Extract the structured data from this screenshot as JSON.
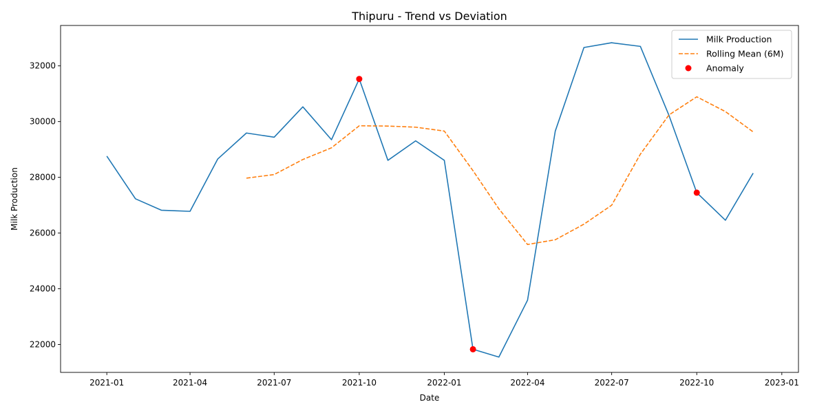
{
  "chart_data": {
    "type": "line",
    "title": "Thipuru - Trend vs Deviation",
    "xlabel": "Date",
    "ylabel": "Milk Production",
    "x": [
      "2021-01-01",
      "2021-02-01",
      "2021-03-01",
      "2021-04-01",
      "2021-05-01",
      "2021-06-01",
      "2021-07-01",
      "2021-08-01",
      "2021-09-01",
      "2021-10-01",
      "2021-11-01",
      "2021-12-01",
      "2022-01-01",
      "2022-02-01",
      "2022-03-01",
      "2022-04-01",
      "2022-05-01",
      "2022-06-01",
      "2022-07-01",
      "2022-08-01",
      "2022-09-01",
      "2022-10-01",
      "2022-11-01",
      "2022-12-01"
    ],
    "xticks": [
      "2021-01",
      "2021-04",
      "2021-07",
      "2021-10",
      "2022-01",
      "2022-04",
      "2022-07",
      "2022-10",
      "2023-01"
    ],
    "xlim": [
      "2020-11-12",
      "2023-01-19"
    ],
    "ylim": [
      21000,
      33450
    ],
    "yticks": [
      22000,
      24000,
      26000,
      28000,
      30000,
      32000
    ],
    "grid": false,
    "legend_position": "top-right",
    "series": [
      {
        "name": "Milk Production",
        "style": "solid",
        "color": "#1f77b4",
        "values": [
          28760,
          27230,
          26820,
          26780,
          28660,
          29590,
          29440,
          30530,
          29350,
          31530,
          28610,
          29310,
          28610,
          21830,
          21550,
          23590,
          29660,
          32660,
          32830,
          32700,
          30220,
          27450,
          26460,
          28150
        ]
      },
      {
        "name": "Rolling Mean (6M)",
        "style": "dashed",
        "color": "#ff7f0e",
        "values": [
          null,
          null,
          null,
          null,
          null,
          27970,
          28100,
          28640,
          29060,
          29850,
          29840,
          29800,
          29660,
          28240,
          26870,
          25590,
          25760,
          26320,
          27000,
          28830,
          30240,
          30890,
          30360,
          29630
        ]
      },
      {
        "name": "Anomaly",
        "style": "scatter",
        "color": "#ff0000",
        "points": [
          {
            "x": "2021-10-01",
            "y": 31530
          },
          {
            "x": "2022-02-01",
            "y": 21830
          },
          {
            "x": "2022-10-01",
            "y": 27450
          }
        ]
      }
    ]
  }
}
